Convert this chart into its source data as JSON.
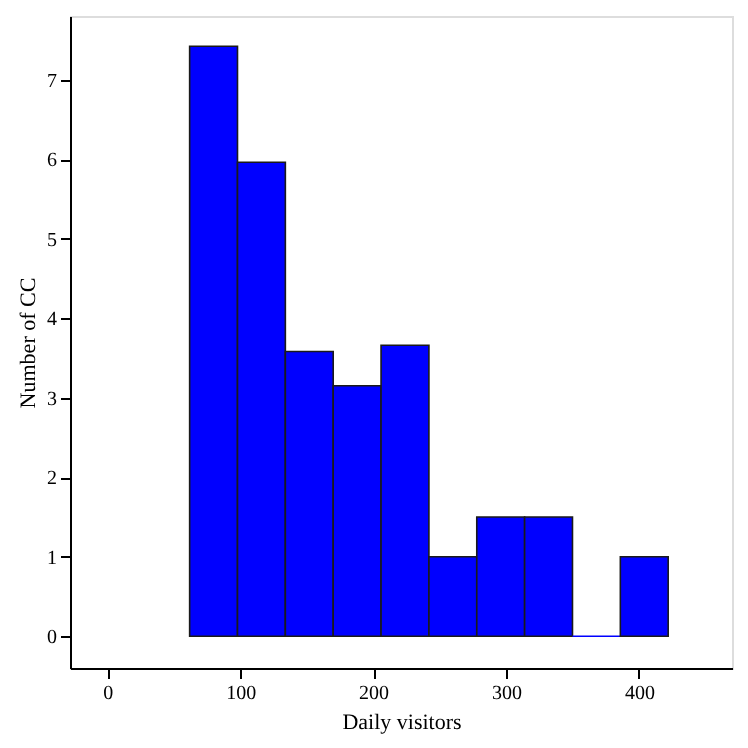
{
  "chart_data": {
    "type": "histogram",
    "xlabel": "Daily visitors",
    "ylabel": "Number of CC",
    "bins": [
      62,
      98,
      134,
      170,
      206,
      242,
      278,
      314,
      350,
      386,
      422
    ],
    "values": [
      7.42,
      5.96,
      3.58,
      3.15,
      3.66,
      1,
      1.5,
      1.5,
      0,
      1
    ],
    "color": "#0000ff",
    "xlim": [
      -28,
      470
    ],
    "xticks": [
      0,
      100,
      200,
      300,
      400
    ],
    "ylim": [
      -0.4,
      7.8
    ],
    "yticks": [
      0,
      1,
      2,
      3,
      4,
      5,
      6,
      7
    ],
    "grid": false
  }
}
